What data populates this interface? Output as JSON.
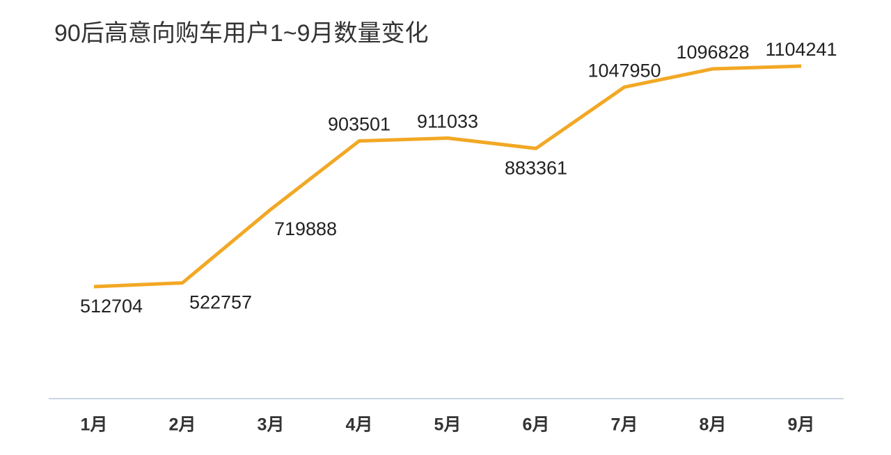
{
  "chart_data": {
    "type": "line",
    "title": "90后高意向购车用户1~9月数量变化",
    "categories": [
      "1月",
      "2月",
      "3月",
      "4月",
      "5月",
      "6月",
      "7月",
      "8月",
      "9月"
    ],
    "series": [
      {
        "name": null,
        "color": "#f2a825",
        "values": [
          512704,
          522757,
          719888,
          903501,
          911033,
          883361,
          1047950,
          1096828,
          1104241
        ]
      }
    ]
  }
}
